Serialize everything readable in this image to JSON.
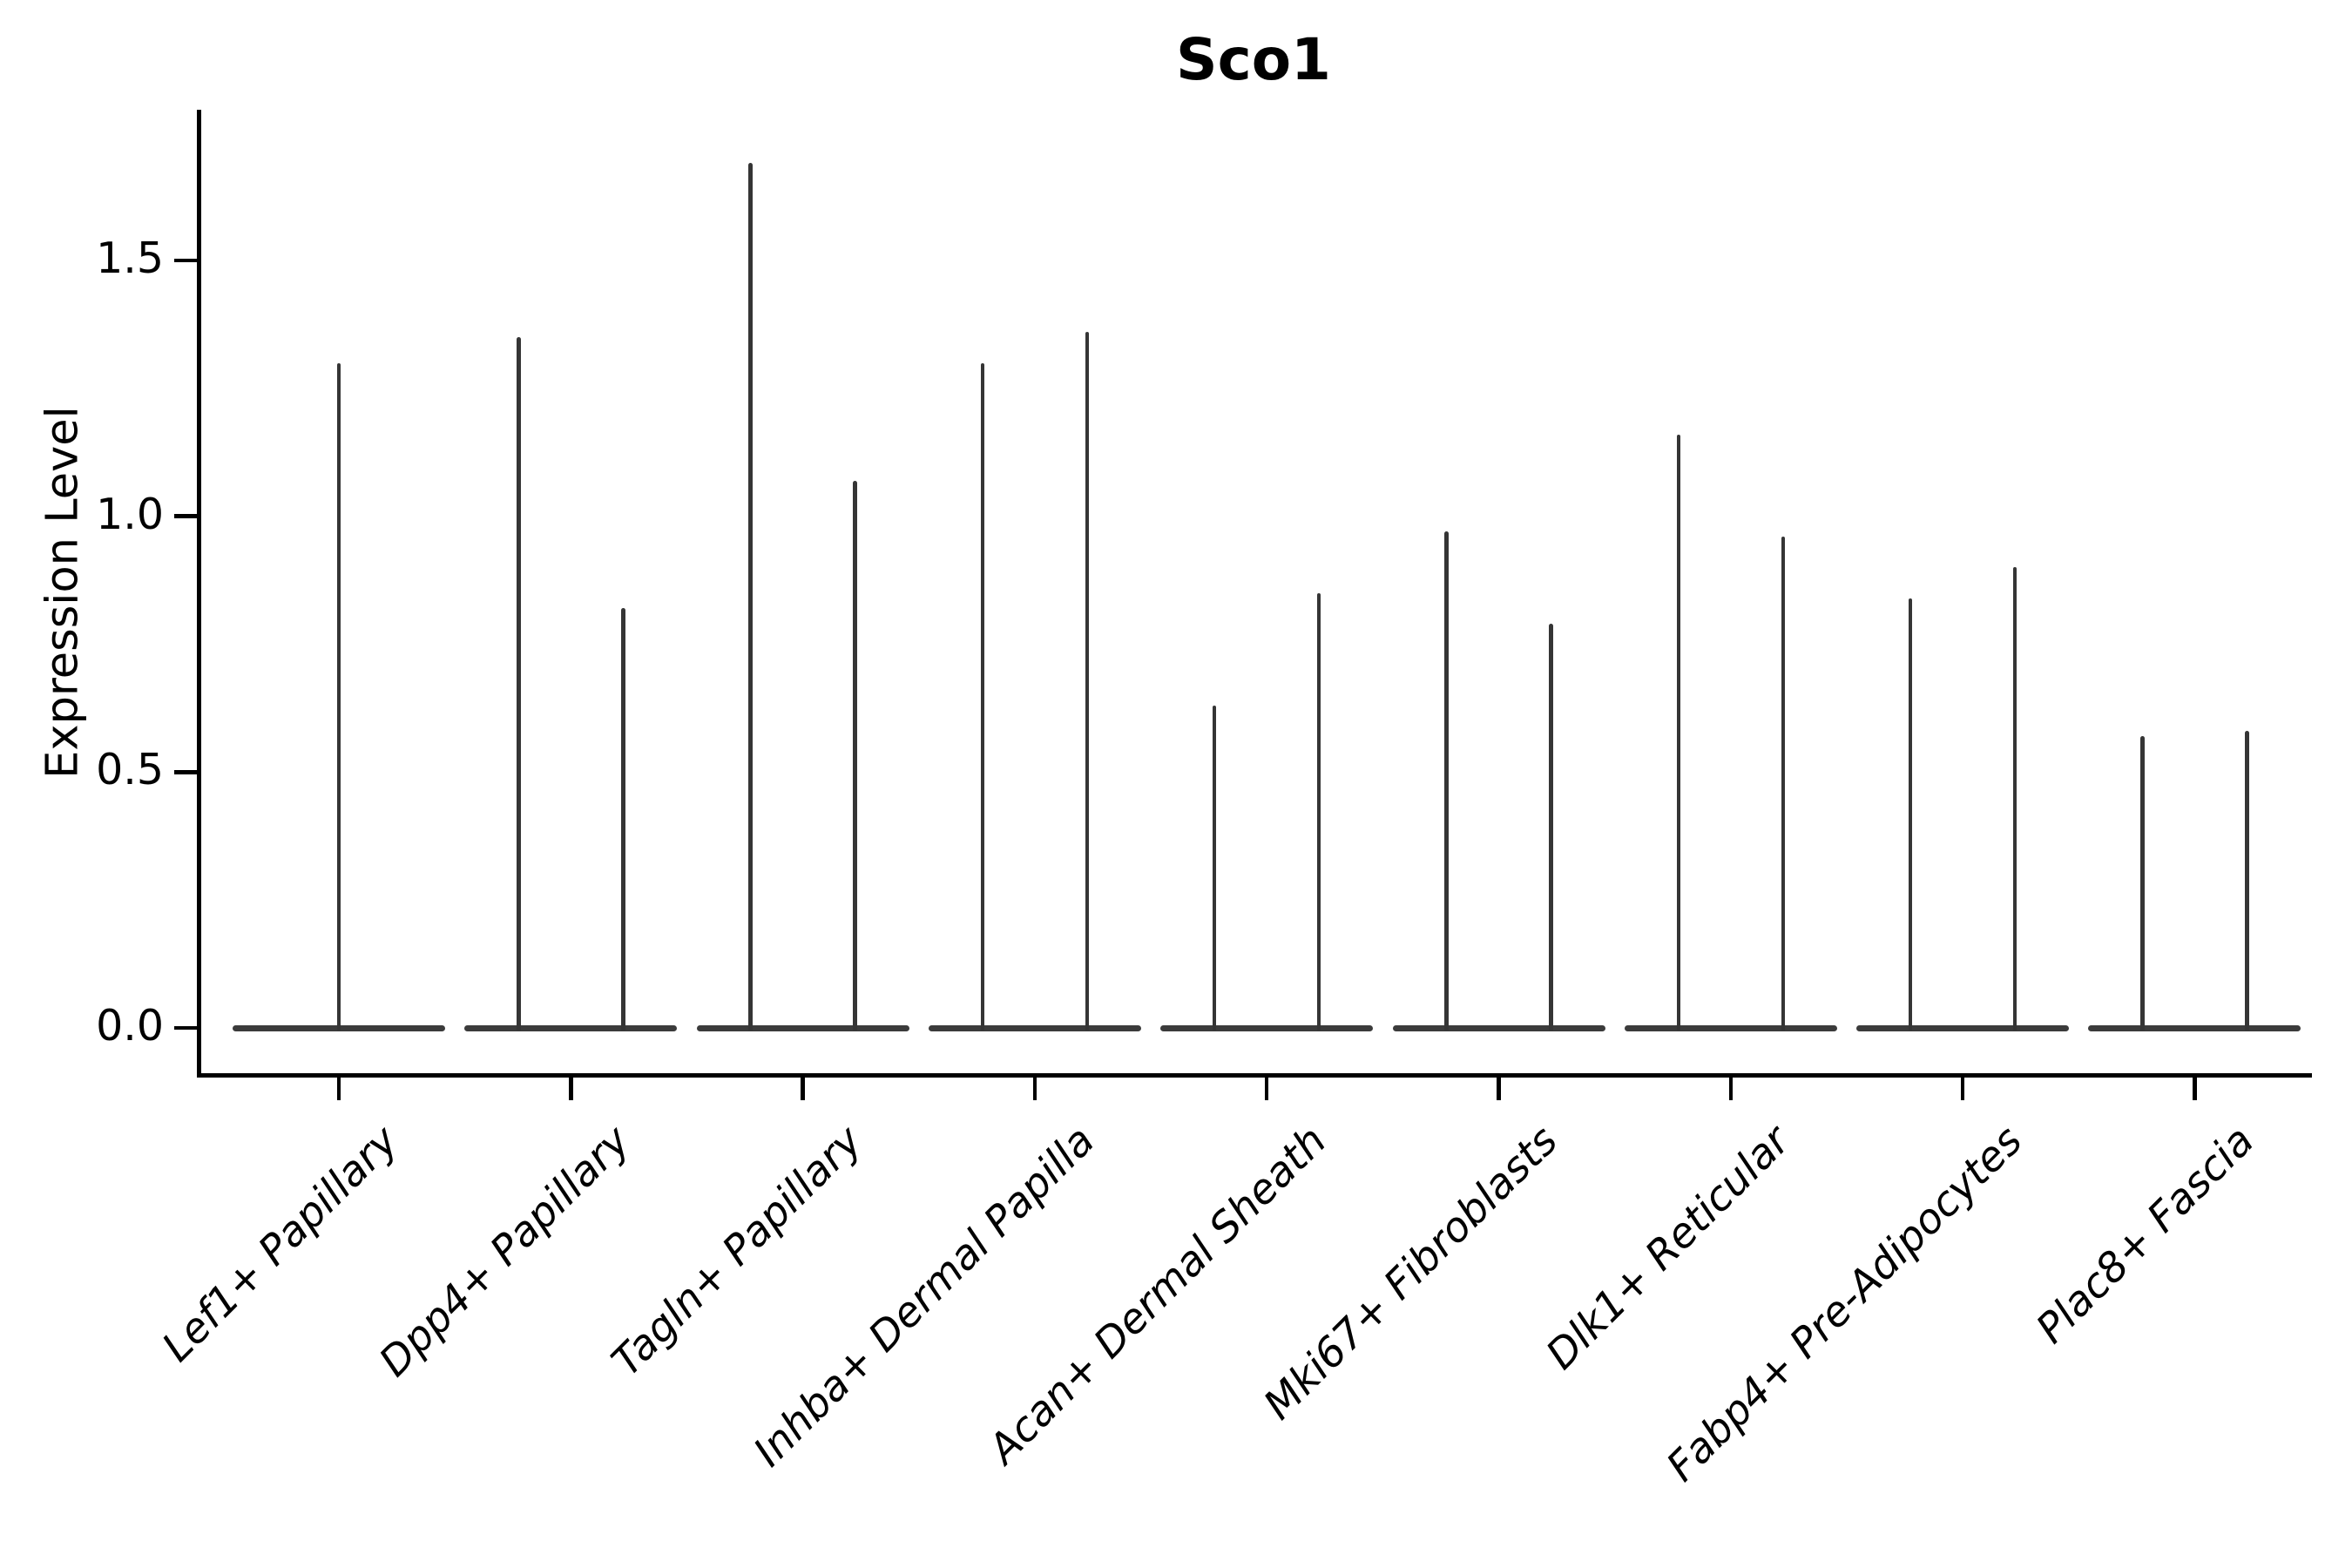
{
  "figure": {
    "title": "Sco1"
  },
  "axes": {
    "ylabel": "Expression Level",
    "ytick_labels": [
      "0.0",
      "0.5",
      "1.0",
      "1.5"
    ],
    "x_tick_rotation_deg": 45
  },
  "colors": {
    "background": "#ffffff",
    "axis": "#000000",
    "text": "#000000",
    "violin_stroke": "#353535",
    "violin_baseline_fill": "#3b3b3b"
  },
  "chart_data": {
    "type": "violin",
    "title": "Sco1",
    "xlabel": "",
    "ylabel": "Expression Level",
    "ylim": [
      -0.09,
      1.79
    ],
    "yticks": [
      0.0,
      0.5,
      1.0,
      1.5
    ],
    "grid": false,
    "legend_position": "none",
    "categories": [
      "Lef1+ Papillary",
      "Dpp4+ Papillary",
      "Tagln+ Papillary",
      "Inhba+ Dermal Papilla",
      "Acan+ Dermal Sheath",
      "Mki67+ Fibroblasts",
      "Dlk1+ Reticular",
      "Fabp4+ Pre-Adipocytes",
      "Plac8+ Fascia"
    ],
    "series": [
      {
        "category": "Lef1+ Papillary",
        "violin_peak_values": [
          1.3
        ],
        "baseline_value": 0.0
      },
      {
        "category": "Dpp4+ Papillary",
        "violin_peak_values": [
          1.35,
          0.82
        ],
        "baseline_value": 0.0
      },
      {
        "category": "Tagln+ Papillary",
        "violin_peak_values": [
          1.69,
          1.07
        ],
        "baseline_value": 0.0
      },
      {
        "category": "Inhba+ Dermal Papilla",
        "violin_peak_values": [
          1.3,
          1.36
        ],
        "baseline_value": 0.0
      },
      {
        "category": "Acan+ Dermal Sheath",
        "violin_peak_values": [
          0.63,
          0.85
        ],
        "baseline_value": 0.0
      },
      {
        "category": "Mki67+ Fibroblasts",
        "violin_peak_values": [
          0.97,
          0.79
        ],
        "baseline_value": 0.0
      },
      {
        "category": "Dlk1+ Reticular",
        "violin_peak_values": [
          1.16,
          0.96
        ],
        "baseline_value": 0.0
      },
      {
        "category": "Fabp4+ Pre-Adipocytes",
        "violin_peak_values": [
          0.84,
          0.9
        ],
        "baseline_value": 0.0
      },
      {
        "category": "Plac8+ Fascia",
        "violin_peak_values": [
          0.57,
          0.58
        ],
        "baseline_value": 0.0
      }
    ]
  }
}
